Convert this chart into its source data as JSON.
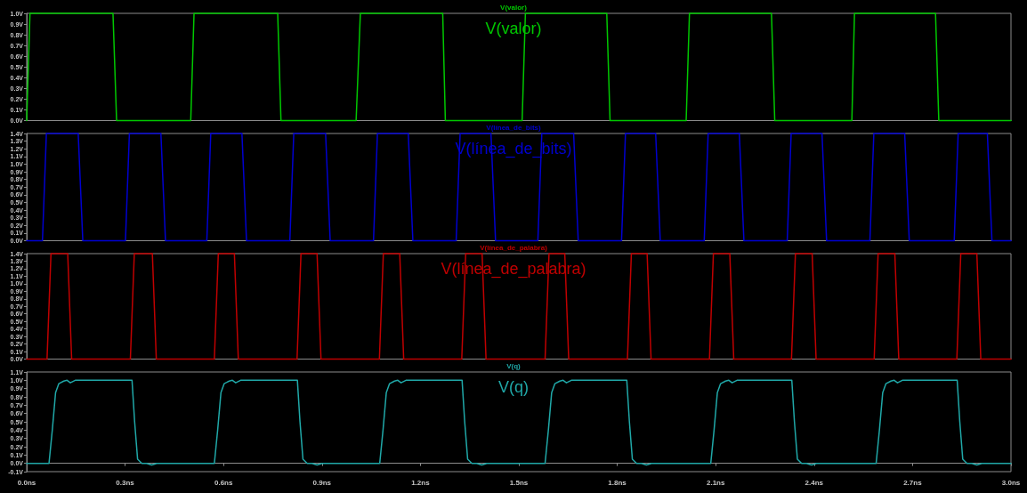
{
  "chart_data": [
    {
      "type": "line",
      "title": "V(valor)",
      "annotations": [
        "V(valor)"
      ],
      "x": [
        0,
        0.01,
        0.263,
        0.274,
        0.5,
        0.51,
        0.765,
        0.775,
        1.004,
        1.017,
        1.268,
        1.276,
        1.51,
        1.52,
        1.768,
        1.778,
        2.01,
        2.02,
        2.27,
        2.28,
        2.515,
        2.523,
        2.77,
        2.78,
        3.0
      ],
      "series": [
        {
          "color": "#00c800",
          "values": [
            0,
            1,
            1,
            0,
            0,
            1,
            1,
            0,
            0,
            1,
            1,
            0,
            0,
            1,
            1,
            0,
            0,
            1,
            1,
            0,
            0,
            1,
            1,
            0,
            0
          ]
        }
      ],
      "xlim": [
        0,
        3
      ],
      "ylim": [
        0,
        1
      ],
      "yticks": [
        {
          "value": 0,
          "label": "0.0V"
        },
        {
          "value": 0.1,
          "label": "0.1V"
        },
        {
          "value": 0.2,
          "label": "0.2V"
        },
        {
          "value": 0.3,
          "label": "0.3V"
        },
        {
          "value": 0.4,
          "label": "0.4V"
        },
        {
          "value": 0.5,
          "label": "0.5V"
        },
        {
          "value": 0.6,
          "label": "0.6V"
        },
        {
          "value": 0.7,
          "label": "0.7V"
        },
        {
          "value": 0.8,
          "label": "0.8V"
        },
        {
          "value": 0.9,
          "label": "0.9V"
        },
        {
          "value": 1,
          "label": "1.0V"
        }
      ],
      "tick_labels": "y"
    },
    {
      "type": "line",
      "title": "V(línea_de_bits)",
      "annotations": [
        "V(línea_de_bits)"
      ],
      "x": [
        0,
        0.048,
        0.06,
        0.157,
        0.171,
        0.301,
        0.313,
        0.409,
        0.423,
        0.549,
        0.561,
        0.656,
        0.67,
        0.802,
        0.814,
        0.911,
        0.925,
        1.057,
        1.069,
        1.163,
        1.177,
        1.309,
        1.321,
        1.415,
        1.429,
        1.558,
        1.57,
        1.667,
        1.681,
        1.813,
        1.825,
        1.917,
        1.931,
        2.065,
        2.077,
        2.172,
        2.186,
        2.318,
        2.33,
        2.424,
        2.438,
        2.57,
        2.582,
        2.676,
        2.69,
        2.827,
        2.839,
        2.928,
        2.942,
        3.0
      ],
      "series": [
        {
          "color": "#0000d0",
          "values": [
            0,
            0,
            1.4,
            1.4,
            0,
            0,
            1.4,
            1.4,
            0,
            0,
            1.4,
            1.4,
            0,
            0,
            1.4,
            1.4,
            0,
            0,
            1.4,
            1.4,
            0,
            0,
            1.4,
            1.4,
            0,
            0,
            1.4,
            1.4,
            0,
            0,
            1.4,
            1.4,
            0,
            0,
            1.4,
            1.4,
            0,
            0,
            1.4,
            1.4,
            0,
            0,
            1.4,
            1.4,
            0,
            0,
            1.4,
            1.4,
            0,
            0
          ]
        }
      ],
      "xlim": [
        0,
        3
      ],
      "ylim": [
        0,
        1.4
      ],
      "yticks": [
        {
          "value": 0,
          "label": "0.0V"
        },
        {
          "value": 0.1,
          "label": "0.1V"
        },
        {
          "value": 0.2,
          "label": "0.2V"
        },
        {
          "value": 0.3,
          "label": "0.3V"
        },
        {
          "value": 0.4,
          "label": "0.4V"
        },
        {
          "value": 0.5,
          "label": "0.5V"
        },
        {
          "value": 0.6,
          "label": "0.6V"
        },
        {
          "value": 0.7,
          "label": "0.7V"
        },
        {
          "value": 0.8,
          "label": "0.8V"
        },
        {
          "value": 0.9,
          "label": "0.9V"
        },
        {
          "value": 1,
          "label": "1.0V"
        },
        {
          "value": 1.1,
          "label": "1.1V"
        },
        {
          "value": 1.2,
          "label": "1.2V"
        },
        {
          "value": 1.3,
          "label": "1.3V"
        },
        {
          "value": 1.4,
          "label": "1.4V"
        }
      ],
      "tick_labels": "y"
    },
    {
      "type": "line",
      "title": "V(línea_de_palabra)",
      "annotations": [
        "V(línea_de_palabra)"
      ],
      "x": [
        0,
        0.062,
        0.074,
        0.125,
        0.137,
        0.316,
        0.328,
        0.383,
        0.395,
        0.572,
        0.584,
        0.633,
        0.645,
        0.824,
        0.836,
        0.885,
        0.897,
        1.075,
        1.087,
        1.137,
        1.149,
        1.326,
        1.338,
        1.388,
        1.4,
        1.58,
        1.592,
        1.64,
        1.652,
        1.831,
        1.843,
        1.891,
        1.903,
        2.081,
        2.093,
        2.143,
        2.155,
        2.331,
        2.343,
        2.394,
        2.406,
        2.583,
        2.595,
        2.646,
        2.658,
        2.835,
        2.847,
        2.896,
        2.908,
        3.0
      ],
      "series": [
        {
          "color": "#c00000",
          "values": [
            0,
            0,
            1.4,
            1.4,
            0,
            0,
            1.4,
            1.4,
            0,
            0,
            1.4,
            1.4,
            0,
            0,
            1.4,
            1.4,
            0,
            0,
            1.4,
            1.4,
            0,
            0,
            1.4,
            1.4,
            0,
            0,
            1.4,
            1.4,
            0,
            0,
            1.4,
            1.4,
            0,
            0,
            1.4,
            1.4,
            0,
            0,
            1.4,
            1.4,
            0,
            0,
            1.4,
            1.4,
            0,
            0,
            1.4,
            1.4,
            0,
            0
          ]
        }
      ],
      "xlim": [
        0,
        3
      ],
      "ylim": [
        0,
        1.4
      ],
      "yticks": [
        {
          "value": 0,
          "label": "0.0V"
        },
        {
          "value": 0.1,
          "label": "0.1V"
        },
        {
          "value": 0.2,
          "label": "0.2V"
        },
        {
          "value": 0.3,
          "label": "0.3V"
        },
        {
          "value": 0.4,
          "label": "0.4V"
        },
        {
          "value": 0.5,
          "label": "0.5V"
        },
        {
          "value": 0.6,
          "label": "0.6V"
        },
        {
          "value": 0.7,
          "label": "0.7V"
        },
        {
          "value": 0.8,
          "label": "0.8V"
        },
        {
          "value": 0.9,
          "label": "0.9V"
        },
        {
          "value": 1,
          "label": "1.0V"
        },
        {
          "value": 1.1,
          "label": "1.1V"
        },
        {
          "value": 1.2,
          "label": "1.2V"
        },
        {
          "value": 1.3,
          "label": "1.3V"
        },
        {
          "value": 1.4,
          "label": "1.4V"
        }
      ],
      "tick_labels": "y"
    },
    {
      "type": "line",
      "title": "V(q)",
      "annotations": [
        "V(q)"
      ],
      "x": [
        0,
        0.068,
        0.078,
        0.088,
        0.098,
        0.113,
        0.123,
        0.133,
        0.148,
        0.321,
        0.329,
        0.338,
        0.351,
        0.366,
        0.381,
        0.396,
        0.572,
        0.582,
        0.592,
        0.602,
        0.617,
        0.627,
        0.637,
        0.652,
        0.825,
        0.833,
        0.842,
        0.855,
        0.87,
        0.885,
        0.9,
        1.076,
        1.086,
        1.096,
        1.106,
        1.121,
        1.131,
        1.141,
        1.156,
        1.327,
        1.335,
        1.344,
        1.357,
        1.372,
        1.387,
        1.402,
        1.58,
        1.59,
        1.6,
        1.61,
        1.625,
        1.635,
        1.645,
        1.66,
        1.829,
        1.837,
        1.846,
        1.859,
        1.874,
        1.889,
        1.904,
        2.085,
        2.095,
        2.105,
        2.115,
        2.13,
        2.14,
        2.15,
        2.165,
        2.332,
        2.34,
        2.349,
        2.362,
        2.377,
        2.392,
        2.407,
        2.589,
        2.599,
        2.609,
        2.619,
        2.634,
        2.644,
        2.654,
        2.669,
        2.836,
        2.844,
        2.853,
        2.866,
        2.881,
        2.896,
        2.911,
        3.0
      ],
      "series": [
        {
          "color": "#20a8a8",
          "values": [
            0,
            0,
            0.4,
            0.85,
            0.96,
            0.99,
            1.0,
            0.97,
            1.0,
            1.0,
            0.5,
            0.05,
            0,
            0,
            -0.02,
            0,
            0,
            0.4,
            0.85,
            0.96,
            0.99,
            1.0,
            0.97,
            1.0,
            1.0,
            0.5,
            0.05,
            0,
            0,
            -0.02,
            0,
            0,
            0.4,
            0.85,
            0.96,
            0.99,
            1.0,
            0.97,
            1.0,
            1.0,
            0.5,
            0.05,
            0,
            0,
            -0.02,
            0,
            0,
            0.4,
            0.85,
            0.96,
            0.99,
            1.0,
            0.97,
            1.0,
            1.0,
            0.5,
            0.05,
            0,
            0,
            -0.02,
            0,
            0,
            0.4,
            0.85,
            0.96,
            0.99,
            1.0,
            0.97,
            1.0,
            1.0,
            0.5,
            0.05,
            0,
            0,
            -0.02,
            0,
            0,
            0.4,
            0.85,
            0.96,
            0.99,
            1.0,
            0.97,
            1.0,
            1.0,
            0.5,
            0.05,
            0,
            0,
            -0.02,
            0,
            0
          ]
        }
      ],
      "xlim": [
        0,
        3
      ],
      "ylim": [
        -0.1,
        1.1
      ],
      "xticks": [
        {
          "value": 0,
          "label": "0.0ns"
        },
        {
          "value": 0.3,
          "label": "0.3ns"
        },
        {
          "value": 0.6,
          "label": "0.6ns"
        },
        {
          "value": 0.9,
          "label": "0.9ns"
        },
        {
          "value": 1.2,
          "label": "1.2ns"
        },
        {
          "value": 1.5,
          "label": "1.5ns"
        },
        {
          "value": 1.8,
          "label": "1.8ns"
        },
        {
          "value": 2.1,
          "label": "2.1ns"
        },
        {
          "value": 2.4,
          "label": "2.4ns"
        },
        {
          "value": 2.7,
          "label": "2.7ns"
        },
        {
          "value": 3.0,
          "label": "3.0ns"
        }
      ],
      "yticks": [
        {
          "value": -0.1,
          "label": "-0.1V"
        },
        {
          "value": 0,
          "label": "0.0V"
        },
        {
          "value": 0.1,
          "label": "0.1V"
        },
        {
          "value": 0.2,
          "label": "0.2V"
        },
        {
          "value": 0.3,
          "label": "0.3V"
        },
        {
          "value": 0.4,
          "label": "0.4V"
        },
        {
          "value": 0.5,
          "label": "0.5V"
        },
        {
          "value": 0.6,
          "label": "0.6V"
        },
        {
          "value": 0.7,
          "label": "0.7V"
        },
        {
          "value": 0.8,
          "label": "0.8V"
        },
        {
          "value": 0.9,
          "label": "0.9V"
        },
        {
          "value": 1,
          "label": "1.0V"
        },
        {
          "value": 1.1,
          "label": "1.1V"
        }
      ]
    }
  ]
}
